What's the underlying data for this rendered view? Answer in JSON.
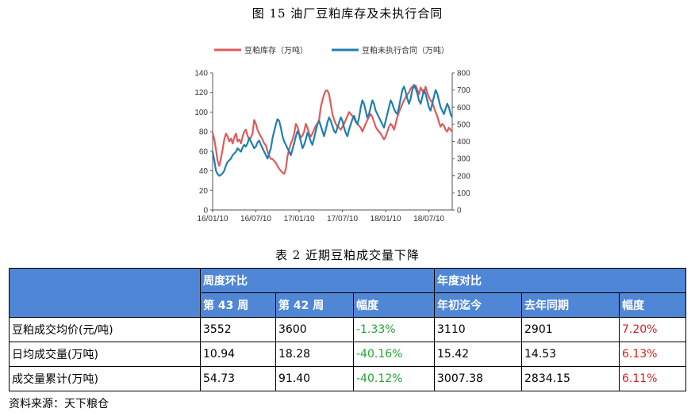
{
  "figure_title": "图 15 油厂豆粕库存及未执行合同",
  "table_title": "表 2 近期豆粕成交量下降",
  "source": "资料来源：天下粮仓",
  "colors": {
    "inventory": "#e05a5a",
    "contracts": "#1f7fb0",
    "header_bg": "#4f86d6",
    "positive": "#d81e1e",
    "negative": "#1ea832"
  },
  "chart_data": {
    "type": "line",
    "x_tick_labels": [
      "16/01/10",
      "16/07/10",
      "17/01/10",
      "17/07/10",
      "18/01/10",
      "18/07/10"
    ],
    "left_ylim": [
      0,
      140
    ],
    "left_yticks": [
      "0",
      "20",
      "40",
      "60",
      "80",
      "100",
      "120",
      "140"
    ],
    "right_ylim": [
      0,
      800
    ],
    "right_yticks": [
      "0",
      "100",
      "200",
      "300",
      "400",
      "500",
      "600",
      "700",
      "800"
    ],
    "grid": false,
    "legend_position": "top",
    "x_period_weeks": 145,
    "series": [
      {
        "name": "豆粕库存（万吨）",
        "axis": "left",
        "values": [
          79,
          72,
          62,
          50,
          45,
          53,
          62,
          72,
          78,
          75,
          70,
          73,
          68,
          74,
          78,
          70,
          72,
          68,
          75,
          80,
          82,
          76,
          72,
          74,
          78,
          92,
          88,
          82,
          78,
          75,
          72,
          68,
          66,
          60,
          55,
          52,
          52,
          50,
          48,
          45,
          42,
          40,
          38,
          37,
          42,
          55,
          62,
          68,
          72,
          78,
          88,
          85,
          78,
          74,
          76,
          80,
          88,
          84,
          78,
          75,
          78,
          82,
          86,
          88,
          92,
          105,
          112,
          118,
          122,
          122,
          118,
          108,
          98,
          92,
          88,
          85,
          84,
          82,
          85,
          88,
          92,
          96,
          100,
          98,
          96,
          94,
          90,
          88,
          86,
          84,
          80,
          84,
          88,
          92,
          95,
          98,
          95,
          90,
          85,
          82,
          80,
          78,
          75,
          72,
          75,
          80,
          85,
          88,
          86,
          82,
          88,
          95,
          100,
          104,
          108,
          112,
          115,
          118,
          120,
          124,
          126,
          125,
          127,
          123,
          118,
          125,
          122,
          119,
          126,
          120,
          115,
          112,
          110,
          105,
          100,
          96,
          90,
          85,
          88,
          86,
          82,
          80,
          84,
          82,
          80
        ]
      },
      {
        "name": "豆粕未执行合同（万吨）",
        "axis": "right",
        "values": [
          340,
          290,
          230,
          210,
          200,
          205,
          215,
          230,
          260,
          280,
          290,
          300,
          320,
          330,
          340,
          360,
          350,
          340,
          365,
          380,
          370,
          390,
          420,
          400,
          380,
          360,
          370,
          395,
          405,
          380,
          360,
          340,
          320,
          300,
          330,
          360,
          420,
          460,
          500,
          530,
          520,
          480,
          430,
          400,
          380,
          360,
          340,
          320,
          355,
          390,
          430,
          460,
          440,
          400,
          360,
          380,
          410,
          450,
          430,
          400,
          380,
          420,
          460,
          500,
          520,
          490,
          460,
          430,
          470,
          510,
          540,
          520,
          490,
          460,
          450,
          480,
          510,
          540,
          520,
          480,
          450,
          430,
          470,
          500,
          530,
          550,
          520,
          500,
          540,
          600,
          640,
          620,
          580,
          540,
          560,
          600,
          640,
          620,
          580,
          560,
          540,
          520,
          500,
          480,
          520,
          560,
          600,
          640,
          620,
          590,
          570,
          560,
          600,
          650,
          700,
          720,
          690,
          650,
          620,
          650,
          700,
          730,
          710,
          680,
          640,
          620,
          660,
          700,
          680,
          640,
          600,
          580,
          620,
          660,
          700,
          680,
          640,
          600,
          580,
          560,
          590,
          620,
          600,
          560,
          540
        ]
      }
    ]
  },
  "table": {
    "group_headers": [
      "周度环比",
      "年度对比"
    ],
    "sub_headers": [
      "第 43 周",
      "第 42 周",
      "幅度",
      "年初迄今",
      "去年同期",
      "幅度"
    ],
    "rows": [
      {
        "label": "豆粕成交均价(元/吨)",
        "cells": [
          "3552",
          "3600",
          "-1.33%",
          "3110",
          "2901",
          "7.20%"
        ]
      },
      {
        "label": "日均成交量(万吨)",
        "cells": [
          "10.94",
          "18.28",
          "-40.16%",
          "15.42",
          "14.53",
          "6.13%"
        ]
      },
      {
        "label": "成交量累计(万吨)",
        "cells": [
          "54.73",
          "91.40",
          "-40.12%",
          "3007.38",
          "2834.15",
          "6.11%"
        ]
      }
    ]
  }
}
